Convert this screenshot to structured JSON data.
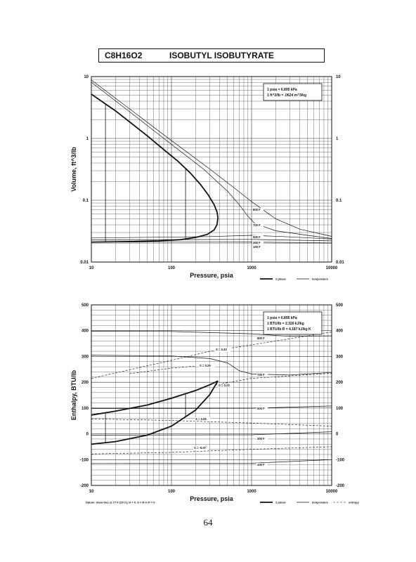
{
  "header": {
    "formula": "C8H16O2",
    "compound": "ISOBUTYL ISOBUTYRATE"
  },
  "page_number": "64",
  "colors": {
    "ink": "#111111",
    "grid": "#333333",
    "paper": "#ffffff"
  },
  "chart_data": [
    {
      "type": "line",
      "title": "",
      "xlabel": "Pressure,  psia",
      "ylabel": "Volume, ft^3/lb",
      "x_scale": "log",
      "y_scale": "log",
      "xlim": [
        10,
        10000
      ],
      "ylim": [
        0.01,
        10
      ],
      "x_ticks": [
        "10",
        "100",
        "1000",
        "10000"
      ],
      "y_ticks": [
        "10",
        "1",
        "0.1",
        "0.01"
      ],
      "grid": true,
      "notes": [
        "1 psia  =  6.895 kPa",
        "1 ft^3/lb  =  .0624 m^3/kg"
      ],
      "legend": [
        "2 phase",
        "temperature"
      ],
      "dome": {
        "name": "2 phase",
        "vapor": [
          [
            10,
            5.2
          ],
          [
            15,
            3.6
          ],
          [
            20,
            2.8
          ],
          [
            30,
            1.85
          ],
          [
            50,
            1.1
          ],
          [
            80,
            0.66
          ],
          [
            120,
            0.43
          ],
          [
            170,
            0.28
          ],
          [
            230,
            0.18
          ],
          [
            290,
            0.12
          ],
          [
            340,
            0.085
          ],
          [
            370,
            0.065
          ],
          [
            380,
            0.052
          ]
        ],
        "liquid": [
          [
            10,
            0.021
          ],
          [
            30,
            0.0214
          ],
          [
            70,
            0.022
          ],
          [
            130,
            0.023
          ],
          [
            200,
            0.025
          ],
          [
            280,
            0.028
          ],
          [
            340,
            0.033
          ],
          [
            370,
            0.04
          ],
          [
            380,
            0.052
          ]
        ]
      },
      "tie_lines": [
        15,
        150
      ],
      "series": [
        {
          "name": "800 F",
          "values": [
            [
              10,
              8.8
            ],
            [
              30,
              3.0
            ],
            [
              100,
              0.92
            ],
            [
              300,
              0.32
            ],
            [
              600,
              0.16
            ],
            [
              1000,
              0.095
            ],
            [
              2000,
              0.05
            ],
            [
              4000,
              0.034
            ],
            [
              10000,
              0.026
            ]
          ]
        },
        {
          "name": "700 F",
          "values": [
            [
              10,
              8.1
            ],
            [
              30,
              2.7
            ],
            [
              100,
              0.8
            ],
            [
              250,
              0.32
            ],
            [
              500,
              0.14
            ],
            [
              700,
              0.085
            ],
            [
              900,
              0.055
            ],
            [
              1100,
              0.042
            ],
            [
              2000,
              0.032
            ],
            [
              5000,
              0.027
            ],
            [
              10000,
              0.024
            ]
          ]
        },
        {
          "name": "500 F",
          "values": [
            [
              10,
              0.0245
            ],
            [
              300,
              0.0258
            ],
            [
              1000,
              0.027
            ],
            [
              3000,
              0.0255
            ],
            [
              10000,
              0.0235
            ]
          ]
        },
        {
          "name": "300 F",
          "values": [
            [
              10,
              0.0228
            ],
            [
              1000,
              0.0232
            ],
            [
              10000,
              0.022
            ]
          ]
        },
        {
          "name": "100 F",
          "values": [
            [
              10,
              0.0209
            ],
            [
              1000,
              0.021
            ],
            [
              10000,
              0.0203
            ]
          ]
        }
      ]
    },
    {
      "type": "line",
      "title": "",
      "xlabel": "Pressure,  psia",
      "ylabel": "Enthalpy, BTU/lb",
      "x_scale": "log",
      "y_scale": "linear",
      "xlim": [
        10,
        10000
      ],
      "ylim": [
        -200,
        500
      ],
      "x_ticks": [
        "10",
        "100",
        "1000",
        "10000"
      ],
      "y_ticks": [
        "500",
        "400",
        "300",
        "200",
        "100",
        "0",
        "-100",
        "-200"
      ],
      "grid": true,
      "notes": [
        "1 psia  =  6.895 kPa",
        "1 BTU/lb  =  2.326 kJ/kg",
        "1 BTU/lb R  =  4.187 kJ/kg K"
      ],
      "datum_note": "Datum: Ideal Gas @ 77 F (25 C),  H = 0,  S = R ln P = 0",
      "legend": [
        "2 phase",
        "temperature",
        "entropy"
      ],
      "dome": {
        "name": "2 phase",
        "vapor": [
          [
            10,
            73
          ],
          [
            20,
            88
          ],
          [
            50,
            112
          ],
          [
            100,
            138
          ],
          [
            200,
            168
          ],
          [
            300,
            190
          ],
          [
            380,
            205
          ]
        ],
        "liquid": [
          [
            10,
            -40
          ],
          [
            20,
            -30
          ],
          [
            50,
            -5
          ],
          [
            100,
            30
          ],
          [
            200,
            92
          ],
          [
            300,
            152
          ],
          [
            380,
            205
          ]
        ]
      },
      "tie_lines": [
        15,
        150
      ],
      "series": [
        {
          "name": "800 F",
          "values": [
            [
              10,
              398
            ],
            [
              100,
              397
            ],
            [
              1000,
              388
            ],
            [
              3000,
              378
            ],
            [
              10000,
              380
            ]
          ]
        },
        {
          "name": "700 F",
          "values": [
            [
              10,
              305
            ],
            [
              100,
              302
            ],
            [
              300,
              292
            ],
            [
              500,
              275
            ],
            [
              700,
              245
            ],
            [
              1000,
              232
            ],
            [
              3000,
              228
            ],
            [
              10000,
              238
            ]
          ]
        },
        {
          "name": "500 F",
          "values": [
            [
              10,
              98
            ],
            [
              1000,
              99
            ],
            [
              10000,
              108
            ]
          ]
        },
        {
          "name": "300 F",
          "values": [
            [
              10,
              -5
            ],
            [
              1000,
              -4
            ],
            [
              10000,
              8
            ]
          ]
        },
        {
          "name": "100 F",
          "values": [
            [
              10,
              -115
            ],
            [
              1000,
              -114
            ],
            [
              10000,
              -100
            ]
          ]
        }
      ],
      "entropy_lines": [
        {
          "name": "S = 0.33",
          "values": [
            [
              10,
              215
            ],
            [
              100,
              285
            ],
            [
              300,
              320
            ],
            [
              1000,
              345
            ],
            [
              10000,
              395
            ]
          ]
        },
        {
          "name": "S = 0.29",
          "values": [
            [
              30,
              233
            ],
            [
              100,
              255
            ],
            [
              200,
              263
            ]
          ]
        },
        {
          "name": "S = 0.23",
          "values": [
            [
              350,
              190
            ],
            [
              1000,
              215
            ],
            [
              10000,
              235
            ]
          ]
        },
        {
          "name": "S = 0.09",
          "values": [
            [
              10,
              58
            ],
            [
              100,
              52
            ],
            [
              1000,
              42
            ],
            [
              10000,
              30
            ]
          ]
        },
        {
          "name": "S = -0.07",
          "values": [
            [
              10,
              -78
            ],
            [
              100,
              -72
            ],
            [
              1000,
              -60
            ],
            [
              10000,
              -50
            ]
          ]
        }
      ]
    }
  ]
}
